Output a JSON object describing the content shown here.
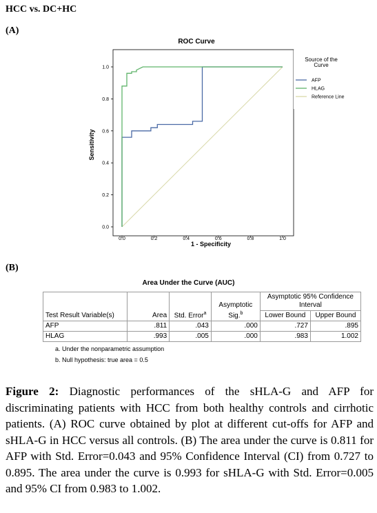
{
  "section_title": "HCC vs. DC+HC",
  "panel_a_label": "(A)",
  "panel_b_label": "(B)",
  "chart_data": {
    "type": "line",
    "title": "ROC Curve",
    "xlabel": "1 - Specificity",
    "ylabel": "Sensitivity",
    "xlim": [
      0,
      1
    ],
    "ylim": [
      0,
      1
    ],
    "x_ticks": [
      "0.0",
      "0.2",
      "0.4",
      "0.6",
      "0.8",
      "1.0"
    ],
    "y_ticks": [
      "0.0",
      "0.2",
      "0.4",
      "0.6",
      "0.8",
      "1.0"
    ],
    "grid": false,
    "legend_title": "Source of the Curve",
    "legend_position": "right",
    "series": [
      {
        "name": "AFP",
        "color": "#4a6aa5",
        "x": [
          0.0,
          0.0,
          0.0,
          0.06,
          0.06,
          0.18,
          0.18,
          0.22,
          0.22,
          0.44,
          0.44,
          0.5,
          0.5,
          1.0
        ],
        "y": [
          0.0,
          0.56,
          0.56,
          0.56,
          0.6,
          0.6,
          0.62,
          0.62,
          0.64,
          0.64,
          0.66,
          0.66,
          1.0,
          1.0
        ]
      },
      {
        "name": "HLAG",
        "color": "#5fb36a",
        "x": [
          0.0,
          0.0,
          0.03,
          0.03,
          0.06,
          0.06,
          0.09,
          0.09,
          0.13,
          1.0
        ],
        "y": [
          0.0,
          0.88,
          0.88,
          0.96,
          0.96,
          0.97,
          0.97,
          0.98,
          1.0,
          1.0
        ]
      },
      {
        "name": "Reference Line",
        "color": "#d8d8a8",
        "x": [
          0,
          1
        ],
        "y": [
          0,
          1
        ]
      }
    ]
  },
  "auc_table": {
    "title": "Area Under the Curve (AUC)",
    "headers": {
      "variable": "Test Result Variable(s)",
      "area": "Area",
      "std_error": "Std. Error",
      "std_error_sup": "a",
      "sig_line1": "Asymptotic",
      "sig_line2": "Sig.",
      "sig_sup": "b",
      "ci_group": "Asymptotic 95% Confidence Interval",
      "lower": "Lower Bound",
      "upper": "Upper Bound"
    },
    "rows": [
      {
        "variable": "AFP",
        "area": ".811",
        "std_error": ".043",
        "sig": ".000",
        "lower": ".727",
        "upper": ".895"
      },
      {
        "variable": "HLAG",
        "area": ".993",
        "std_error": ".005",
        "sig": ".000",
        "lower": ".983",
        "upper": "1.002"
      }
    ],
    "footnotes": [
      "a. Under the nonparametric assumption",
      "b. Null hypothesis: true area = 0.5"
    ]
  },
  "caption": {
    "label": "Figure 2:",
    "text": "Diagnostic performances of the sHLA-G and AFP for discriminating patients with HCC from both healthy controls and cirrhotic patients. (A) ROC curve obtained by plot at different cut-offs for AFP and sHLA-G in HCC versus all controls. (B) The area under the curve is 0.811 for AFP with Std. Error=0.043 and 95% Confidence Interval (CI) from 0.727 to 0.895. The area under the curve is 0.993 for sHLA-G with Std. Error=0.005 and 95% CI from 0.983 to 1.002."
  }
}
